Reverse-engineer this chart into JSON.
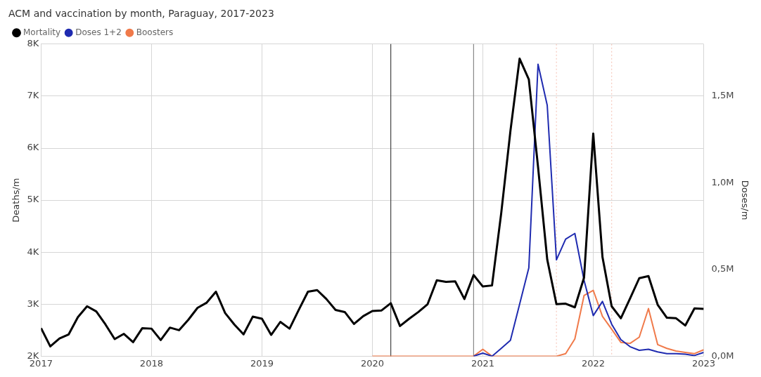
{
  "chart_data": {
    "type": "line",
    "title": "ACM and vaccination by month, Paraguay, 2017-2023",
    "ylabel": "Deaths/m",
    "y2label": "Doses/m",
    "x": [
      "2017-01",
      "2017-02",
      "2017-03",
      "2017-04",
      "2017-05",
      "2017-06",
      "2017-07",
      "2017-08",
      "2017-09",
      "2017-10",
      "2017-11",
      "2017-12",
      "2018-01",
      "2018-02",
      "2018-03",
      "2018-04",
      "2018-05",
      "2018-06",
      "2018-07",
      "2018-08",
      "2018-09",
      "2018-10",
      "2018-11",
      "2018-12",
      "2019-01",
      "2019-02",
      "2019-03",
      "2019-04",
      "2019-05",
      "2019-06",
      "2019-07",
      "2019-08",
      "2019-09",
      "2019-10",
      "2019-11",
      "2019-12",
      "2020-01",
      "2020-02",
      "2020-03",
      "2020-04",
      "2020-05",
      "2020-06",
      "2020-07",
      "2020-08",
      "2020-09",
      "2020-10",
      "2020-11",
      "2020-12",
      "2021-01",
      "2021-02",
      "2021-03",
      "2021-04",
      "2021-05",
      "2021-06",
      "2021-07",
      "2021-08",
      "2021-09",
      "2021-10",
      "2021-11",
      "2021-12",
      "2022-01",
      "2022-02",
      "2022-03",
      "2022-04",
      "2022-05",
      "2022-06",
      "2022-07",
      "2022-08",
      "2022-09",
      "2022-10",
      "2022-11",
      "2022-12",
      "2023-01"
    ],
    "series": [
      {
        "name": "Mortality",
        "color": "#000000",
        "values": [
          2540,
          2190,
          2340,
          2420,
          2750,
          2960,
          2860,
          2610,
          2330,
          2430,
          2270,
          2540,
          2530,
          2310,
          2550,
          2500,
          2700,
          2930,
          3030,
          3240,
          2830,
          2610,
          2420,
          2760,
          2720,
          2410,
          2660,
          2530,
          2890,
          3240,
          3270,
          3100,
          2890,
          2850,
          2620,
          2770,
          2870,
          2880,
          3020,
          2580,
          2720,
          2850,
          3000,
          3460,
          3430,
          3440,
          3100,
          3560,
          3340,
          3360,
          4750,
          6330,
          7720,
          7320,
          5640,
          3860,
          3000,
          3010,
          2940,
          3510,
          6280,
          3910,
          2960,
          2730,
          3110,
          3500,
          3540,
          2990,
          2740,
          2730,
          2590,
          2920,
          2910
        ]
      },
      {
        "name": "Doses 1+2",
        "color": "#1f2bb0",
        "axis": "y2",
        "x": [
          "2020-12",
          "2021-01",
          "2021-02",
          "2021-03",
          "2021-04",
          "2021-05",
          "2021-06",
          "2021-07",
          "2021-08",
          "2021-09",
          "2021-10",
          "2021-11",
          "2021-12",
          "2022-01",
          "2022-02",
          "2022-03",
          "2022-04",
          "2022-05",
          "2022-06",
          "2022-07",
          "2022-08",
          "2022-09",
          "2022-10",
          "2022-11",
          "2022-12",
          "2023-01"
        ],
        "values": [
          0,
          18000,
          0,
          45000,
          92000,
          300000,
          510000,
          1684000,
          1447000,
          556000,
          675000,
          708000,
          438000,
          234000,
          316000,
          185000,
          96000,
          55000,
          34000,
          40000,
          25000,
          15000,
          15000,
          12000,
          4000,
          22000
        ]
      },
      {
        "name": "Boosters",
        "color": "#f07a4a",
        "axis": "y2",
        "x": [
          "2020-01",
          "2020-02",
          "2020-03",
          "2020-04",
          "2020-05",
          "2020-06",
          "2020-07",
          "2020-08",
          "2020-09",
          "2020-10",
          "2020-11",
          "2020-12",
          "2021-01",
          "2021-02",
          "2021-03",
          "2021-04",
          "2021-05",
          "2021-06",
          "2021-07",
          "2021-08",
          "2021-09",
          "2021-10",
          "2021-11",
          "2021-12",
          "2022-01",
          "2022-02",
          "2022-03",
          "2022-04",
          "2022-05",
          "2022-06",
          "2022-07",
          "2022-08",
          "2022-09",
          "2022-10",
          "2022-11",
          "2022-12",
          "2023-01"
        ],
        "values": [
          0,
          0,
          0,
          0,
          0,
          0,
          0,
          0,
          0,
          0,
          0,
          0,
          40000,
          0,
          0,
          0,
          0,
          0,
          0,
          0,
          0,
          15000,
          100000,
          350000,
          380000,
          230000,
          156000,
          80000,
          74000,
          110000,
          275000,
          67000,
          45000,
          30000,
          22000,
          15000,
          37000
        ]
      }
    ],
    "xlim": [
      "2017-01",
      "2023-01"
    ],
    "xticks": [
      "2017",
      "2018",
      "2019",
      "2020",
      "2021",
      "2022",
      "2023"
    ],
    "ylim": [
      2000,
      8000
    ],
    "yticks": [
      {
        "value": 2000,
        "label": "2K"
      },
      {
        "value": 3000,
        "label": "3K"
      },
      {
        "value": 4000,
        "label": "4K"
      },
      {
        "value": 5000,
        "label": "5K"
      },
      {
        "value": 6000,
        "label": "6K"
      },
      {
        "value": 7000,
        "label": "7K"
      },
      {
        "value": 8000,
        "label": "8K"
      }
    ],
    "y2lim": [
      0,
      1800000
    ],
    "y2ticks": [
      {
        "value": 0,
        "label": "0,0M"
      },
      {
        "value": 500000,
        "label": "0,5M"
      },
      {
        "value": 1000000,
        "label": "1,0M"
      },
      {
        "value": 1500000,
        "label": "1,5M"
      }
    ],
    "ref_lines": [
      {
        "axis": "x",
        "value": "2020-03",
        "color": "#444444",
        "line_style": "solid"
      },
      {
        "axis": "x",
        "value": "2020-12",
        "color": "#888888",
        "line_style": "solid"
      },
      {
        "axis": "x",
        "value": "2021-09",
        "color": "#f6c9bd",
        "line_style": "dotted"
      },
      {
        "axis": "x",
        "value": "2022-03",
        "color": "#f6c9bd",
        "line_style": "dotted"
      }
    ],
    "grid": true,
    "legend": "top left",
    "marker": "none",
    "line_style": "solid"
  }
}
